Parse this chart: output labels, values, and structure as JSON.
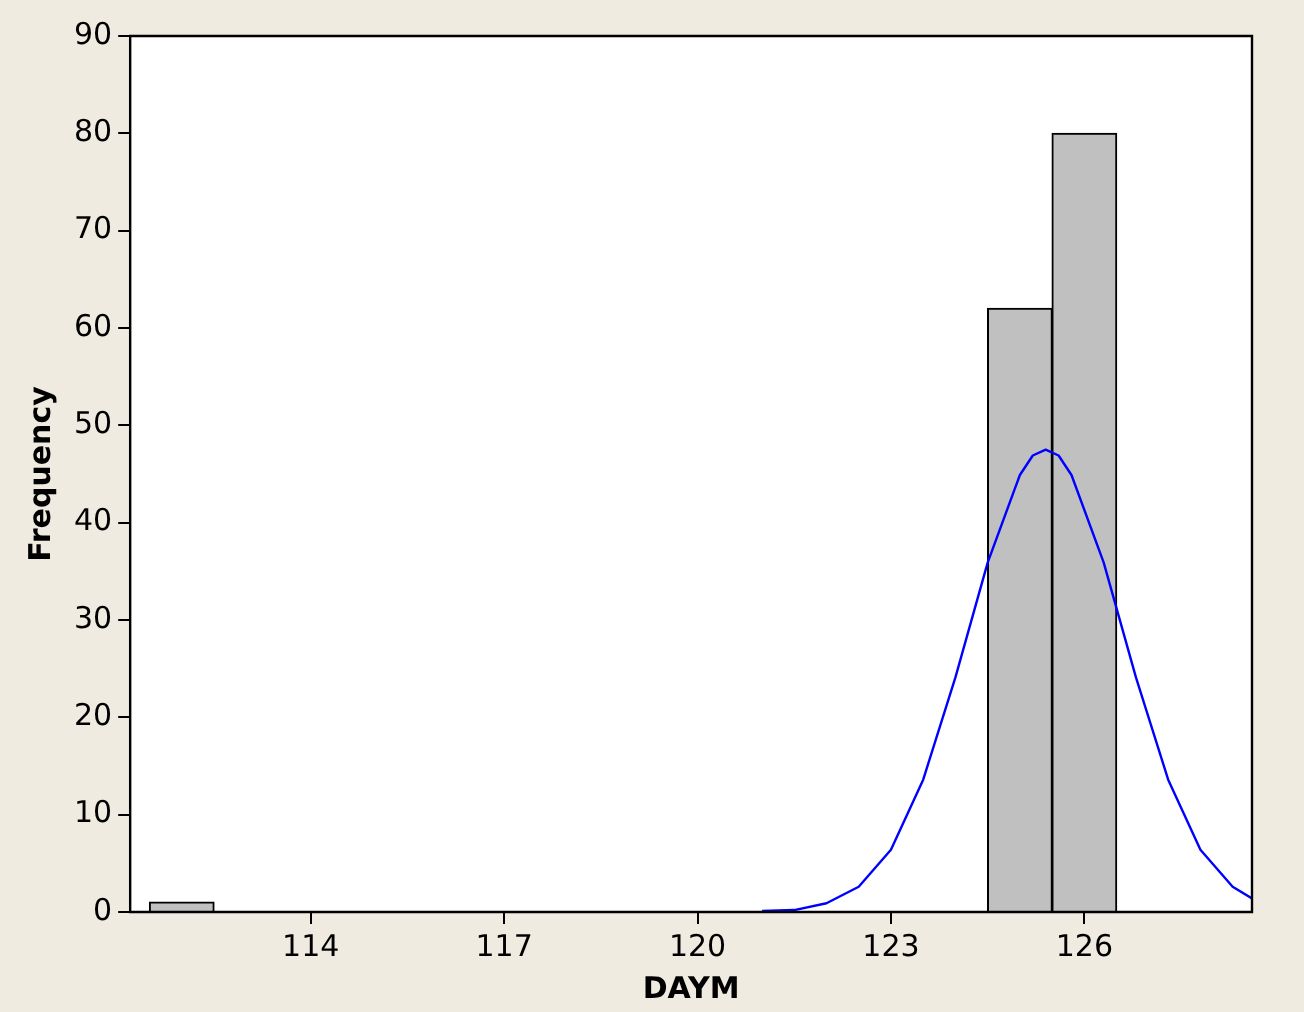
{
  "chart_data": {
    "type": "histogram",
    "xlabel": "DAYM",
    "ylabel": "Frequency",
    "xlim": [
      111.2,
      128.6
    ],
    "xticks": [
      114,
      117,
      120,
      123,
      126
    ],
    "ylim": [
      0,
      90
    ],
    "yticks": [
      0,
      10,
      20,
      30,
      40,
      50,
      60,
      70,
      80,
      90
    ],
    "grid": false,
    "legend": false,
    "marker": "none",
    "series": [
      {
        "type": "histogram",
        "color": "#c0c0c0",
        "bins": [
          111.5,
          112.5,
          113.5,
          114.5,
          115.5,
          116.5,
          117.5,
          118.5,
          119.5,
          120.5,
          121.5,
          122.5,
          123.5,
          124.5,
          125.5,
          126.5
        ],
        "values": [
          1,
          0,
          0,
          0,
          0,
          0,
          0,
          0,
          0,
          0,
          0,
          0,
          0,
          62,
          80
        ]
      },
      {
        "type": "line",
        "color": "#0000ff",
        "x": [
          121,
          121.5,
          122,
          122.5,
          123,
          123.5,
          124,
          124.5,
          125,
          125.2,
          125.4,
          125.6,
          125.8,
          126.3,
          126.8,
          127.3,
          127.8,
          128.3,
          128.6
        ],
        "values": [
          0.1,
          0.2,
          0.9,
          2.6,
          6.4,
          13.6,
          24.1,
          35.9,
          44.9,
          46.9,
          47.5,
          46.9,
          44.9,
          35.9,
          24.1,
          13.6,
          6.4,
          2.6,
          1.4
        ]
      }
    ]
  }
}
